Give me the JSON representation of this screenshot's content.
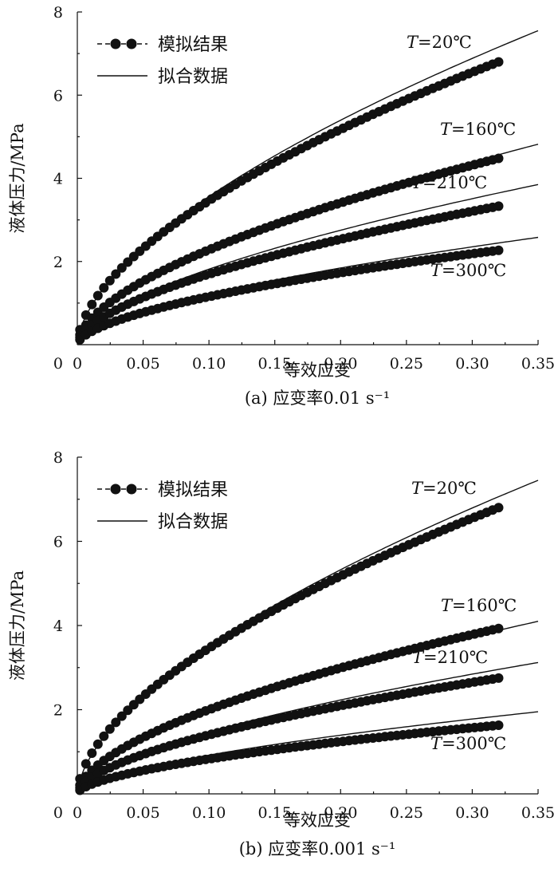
{
  "chart_data": [
    {
      "type": "scatter",
      "caption": "(a) 应变率0.01 s⁻¹",
      "xlabel": "等效应变",
      "ylabel": "液体压力/MPa",
      "xlim": [
        0,
        0.35
      ],
      "ylim": [
        0,
        8
      ],
      "x_ticks": [
        "0",
        "0.05",
        "0.10",
        "0.15",
        "0.20",
        "0.25",
        "0.30",
        "0.35"
      ],
      "y_ticks": [
        "2",
        "4",
        "6",
        "8"
      ],
      "legend": {
        "position": "top-left",
        "sim_label": "模拟结果",
        "fit_label": "拟合数据"
      },
      "series": [
        {
          "label_italic": "T",
          "label_rest": "=20℃",
          "sim_end": [
            0.32,
            6.8
          ],
          "fit_end": [
            0.35,
            7.55
          ]
        },
        {
          "label_italic": "T",
          "label_rest": "=160℃",
          "sim_end": [
            0.32,
            4.48
          ],
          "fit_end": [
            0.35,
            4.82
          ]
        },
        {
          "label_italic": "T",
          "label_rest": "=210℃",
          "sim_end": [
            0.32,
            3.33
          ],
          "fit_end": [
            0.35,
            3.85
          ]
        },
        {
          "label_italic": "T",
          "label_rest": "=300℃",
          "sim_end": [
            0.32,
            2.27
          ],
          "fit_end": [
            0.35,
            2.58
          ]
        }
      ]
    },
    {
      "type": "scatter",
      "caption": "(b) 应变率0.001 s⁻¹",
      "xlabel": "等效应变",
      "ylabel": "液体压力/MPa",
      "xlim": [
        0,
        0.35
      ],
      "ylim": [
        0,
        8
      ],
      "x_ticks": [
        "0",
        "0.05",
        "0.10",
        "0.15",
        "0.20",
        "0.25",
        "0.30",
        "0.35"
      ],
      "y_ticks": [
        "2",
        "4",
        "6",
        "8"
      ],
      "legend": {
        "position": "top-left",
        "sim_label": "模拟结果",
        "fit_label": "拟合数据"
      },
      "series": [
        {
          "label_italic": "T",
          "label_rest": "=20℃",
          "sim_end": [
            0.32,
            6.8
          ],
          "fit_end": [
            0.35,
            7.45
          ]
        },
        {
          "label_italic": "T",
          "label_rest": "=160℃",
          "sim_end": [
            0.32,
            3.93
          ],
          "fit_end": [
            0.35,
            4.1
          ]
        },
        {
          "label_italic": "T",
          "label_rest": "=210℃",
          "sim_end": [
            0.32,
            2.75
          ],
          "fit_end": [
            0.35,
            3.12
          ]
        },
        {
          "label_italic": "T",
          "label_rest": "=300℃",
          "sim_end": [
            0.32,
            1.63
          ],
          "fit_end": [
            0.35,
            1.95
          ]
        }
      ]
    }
  ]
}
